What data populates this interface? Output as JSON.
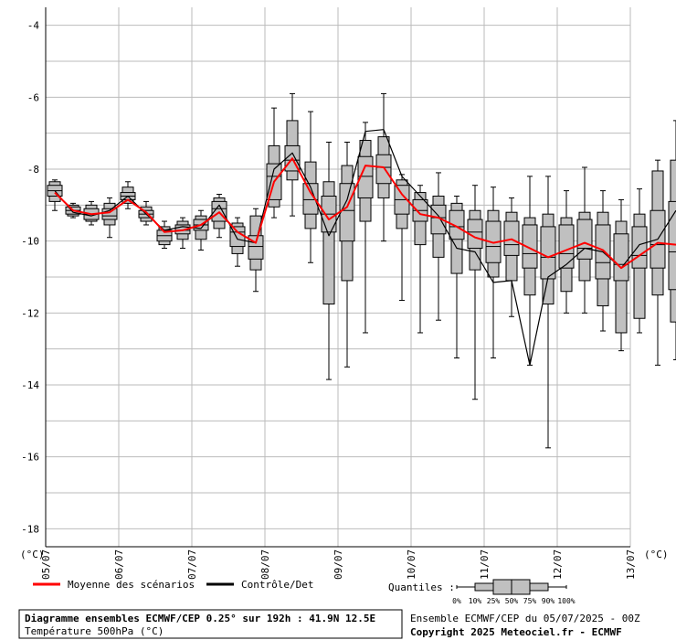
{
  "chart_data": {
    "type": "boxplot",
    "ylim": [
      -18.5,
      -3.5
    ],
    "yticks": [
      -4,
      -6,
      -8,
      -10,
      -12,
      -14,
      -16,
      -18
    ],
    "unit_left": "(°C)",
    "unit_right": "(°C)",
    "date_labels": [
      "05/07",
      "06/07",
      "07/07",
      "08/07",
      "09/07",
      "10/07",
      "11/07",
      "12/07",
      "13/07"
    ],
    "steps_per_day": 4,
    "colors": {
      "box": "#c0c0c0",
      "mean": "#ff0000",
      "control": "#000000",
      "grid": "#bbbbbb"
    },
    "boxes": [
      {
        "p0": -9.15,
        "p10": -8.9,
        "p25": -8.75,
        "p50": -8.6,
        "p75": -8.45,
        "p90": -8.35,
        "p100": -8.3
      },
      {
        "p0": -9.35,
        "p10": -9.3,
        "p25": -9.25,
        "p50": -9.15,
        "p75": -9.05,
        "p90": -9.0,
        "p100": -8.95
      },
      {
        "p0": -9.55,
        "p10": -9.45,
        "p25": -9.4,
        "p50": -9.25,
        "p75": -9.1,
        "p90": -9.0,
        "p100": -8.9
      },
      {
        "p0": -9.9,
        "p10": -9.55,
        "p25": -9.4,
        "p50": -9.3,
        "p75": -9.1,
        "p90": -8.95,
        "p100": -8.8
      },
      {
        "p0": -9.1,
        "p10": -8.95,
        "p25": -8.85,
        "p50": -8.75,
        "p75": -8.65,
        "p90": -8.5,
        "p100": -8.35
      },
      {
        "p0": -9.55,
        "p10": -9.45,
        "p25": -9.35,
        "p50": -9.25,
        "p75": -9.15,
        "p90": -9.05,
        "p100": -8.9
      },
      {
        "p0": -10.2,
        "p10": -10.1,
        "p25": -10.0,
        "p50": -9.85,
        "p75": -9.7,
        "p90": -9.6,
        "p100": -9.45
      },
      {
        "p0": -10.2,
        "p10": -9.95,
        "p25": -9.8,
        "p50": -9.7,
        "p75": -9.55,
        "p90": -9.45,
        "p100": -9.35
      },
      {
        "p0": -10.25,
        "p10": -9.95,
        "p25": -9.7,
        "p50": -9.55,
        "p75": -9.4,
        "p90": -9.3,
        "p100": -9.15
      },
      {
        "p0": -9.9,
        "p10": -9.65,
        "p25": -9.45,
        "p50": -9.1,
        "p75": -8.9,
        "p90": -8.8,
        "p100": -8.7
      },
      {
        "p0": -10.7,
        "p10": -10.35,
        "p25": -10.15,
        "p50": -9.75,
        "p75": -9.6,
        "p90": -9.5,
        "p100": -9.35
      },
      {
        "p0": -11.4,
        "p10": -10.8,
        "p25": -10.5,
        "p50": -10.15,
        "p75": -9.85,
        "p90": -9.3,
        "p100": -9.1
      },
      {
        "p0": -9.35,
        "p10": -9.05,
        "p25": -8.85,
        "p50": -8.2,
        "p75": -7.85,
        "p90": -7.35,
        "p100": -6.3
      },
      {
        "p0": -9.3,
        "p10": -8.3,
        "p25": -8.05,
        "p50": -7.75,
        "p75": -7.35,
        "p90": -6.65,
        "p100": -5.9
      },
      {
        "p0": -10.6,
        "p10": -9.65,
        "p25": -9.25,
        "p50": -8.85,
        "p75": -8.4,
        "p90": -7.8,
        "p100": -6.4
      },
      {
        "p0": -13.85,
        "p10": -11.75,
        "p25": -9.75,
        "p50": -9.25,
        "p75": -8.75,
        "p90": -8.35,
        "p100": -7.25
      },
      {
        "p0": -13.5,
        "p10": -11.1,
        "p25": -10.0,
        "p50": -9.15,
        "p75": -8.4,
        "p90": -7.9,
        "p100": -7.25
      },
      {
        "p0": -12.55,
        "p10": -9.45,
        "p25": -8.8,
        "p50": -8.2,
        "p75": -7.65,
        "p90": -7.2,
        "p100": -6.7
      },
      {
        "p0": -10.0,
        "p10": -8.8,
        "p25": -8.4,
        "p50": -7.95,
        "p75": -7.6,
        "p90": -7.1,
        "p100": -5.9
      },
      {
        "p0": -11.65,
        "p10": -9.65,
        "p25": -9.25,
        "p50": -8.85,
        "p75": -8.45,
        "p90": -8.3,
        "p100": -8.15
      },
      {
        "p0": -12.55,
        "p10": -10.1,
        "p25": -9.45,
        "p50": -9.15,
        "p75": -8.85,
        "p90": -8.65,
        "p100": -8.45
      },
      {
        "p0": -12.2,
        "p10": -10.45,
        "p25": -9.8,
        "p50": -9.35,
        "p75": -9.0,
        "p90": -8.75,
        "p100": -8.1
      },
      {
        "p0": -13.25,
        "p10": -10.9,
        "p25": -9.95,
        "p50": -9.6,
        "p75": -9.15,
        "p90": -8.95,
        "p100": -8.75
      },
      {
        "p0": -14.4,
        "p10": -10.8,
        "p25": -10.2,
        "p50": -9.75,
        "p75": -9.4,
        "p90": -9.15,
        "p100": -8.45
      },
      {
        "p0": -13.25,
        "p10": -11.0,
        "p25": -10.6,
        "p50": -10.15,
        "p75": -9.45,
        "p90": -9.15,
        "p100": -8.5
      },
      {
        "p0": -12.1,
        "p10": -11.1,
        "p25": -10.4,
        "p50": -10.1,
        "p75": -9.45,
        "p90": -9.2,
        "p100": -8.8
      },
      {
        "p0": -13.45,
        "p10": -11.5,
        "p25": -10.75,
        "p50": -10.35,
        "p75": -9.55,
        "p90": -9.35,
        "p100": -8.2
      },
      {
        "p0": -15.75,
        "p10": -11.75,
        "p25": -11.05,
        "p50": -10.45,
        "p75": -9.6,
        "p90": -9.25,
        "p100": -8.2
      },
      {
        "p0": -12.0,
        "p10": -11.4,
        "p25": -10.75,
        "p50": -10.35,
        "p75": -9.55,
        "p90": -9.35,
        "p100": -8.6
      },
      {
        "p0": -12.0,
        "p10": -11.1,
        "p25": -10.5,
        "p50": -10.2,
        "p75": -9.4,
        "p90": -9.2,
        "p100": -7.95
      },
      {
        "p0": -12.5,
        "p10": -11.8,
        "p25": -11.05,
        "p50": -10.6,
        "p75": -9.55,
        "p90": -9.2,
        "p100": -8.6
      },
      {
        "p0": -13.05,
        "p10": -12.55,
        "p25": -11.1,
        "p50": -10.65,
        "p75": -9.8,
        "p90": -9.45,
        "p100": -8.85
      },
      {
        "p0": -12.55,
        "p10": -12.15,
        "p25": -10.75,
        "p50": -10.4,
        "p75": -9.6,
        "p90": -9.25,
        "p100": -8.55
      },
      {
        "p0": -13.45,
        "p10": -11.5,
        "p25": -10.75,
        "p50": -10.1,
        "p75": -9.15,
        "p90": -8.05,
        "p100": -7.75
      },
      {
        "p0": -13.3,
        "p10": -12.25,
        "p25": -11.35,
        "p50": -10.3,
        "p75": -8.9,
        "p90": -7.75,
        "p100": -6.65
      }
    ],
    "mean": [
      -8.65,
      -9.15,
      -9.25,
      -9.2,
      -8.85,
      -9.2,
      -9.75,
      -9.7,
      -9.55,
      -9.2,
      -9.75,
      -10.05,
      -8.35,
      -7.7,
      -8.65,
      -9.4,
      -9.05,
      -7.9,
      -7.95,
      -8.7,
      -9.25,
      -9.35,
      -9.6,
      -9.9,
      -10.05,
      -9.95,
      -10.2,
      -10.45,
      -10.25,
      -10.05,
      -10.25,
      -10.75,
      -10.4,
      -10.05,
      -10.1
    ],
    "control": [
      -8.6,
      -9.2,
      -9.3,
      -9.15,
      -8.75,
      -9.25,
      -9.7,
      -9.6,
      -9.65,
      -9.0,
      -9.95,
      -10.05,
      -8.0,
      -7.55,
      -8.5,
      -9.85,
      -8.85,
      -6.95,
      -6.9,
      -8.2,
      -8.75,
      -9.3,
      -10.2,
      -10.3,
      -11.15,
      -11.1,
      -13.45,
      -11.0,
      -10.65,
      -10.2,
      -10.3,
      -10.75,
      -10.1,
      -9.95,
      -9.15
    ],
    "legend": {
      "mean_label": "Moyenne des scénarios",
      "control_label": "Contrôle/Det",
      "quantiles_label": "Quantiles :",
      "quantile_ticks": [
        "0%",
        "10%",
        "25%",
        "50%",
        "75%",
        "90%",
        "100%"
      ]
    },
    "title_main": "Diagramme ensembles ECMWF/CEP 0.25° sur 192h : 41.9N 12.5E",
    "title_sub": "Température 500hPa (°C)",
    "run_info": "Ensemble ECMWF/CEP du 05/07/2025 - 00Z",
    "copyright": "Copyright 2025 Meteociel.fr - ECMWF"
  }
}
